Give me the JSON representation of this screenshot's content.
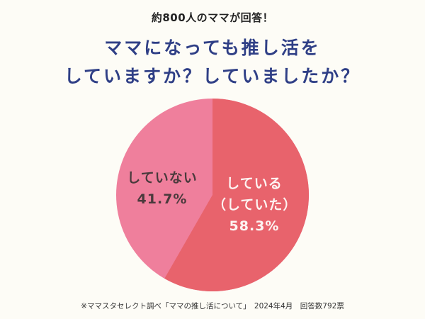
{
  "header": {
    "subtitle": "約800人のママが回答！",
    "title_line1": "ママになっても推し活を",
    "title_line2": "していますか？していましたか？"
  },
  "colors": {
    "background": "#fdfcf6",
    "title": "#2f3f86",
    "slice_yes": "#e8636c",
    "slice_no": "#ef7f9c",
    "label_yes_text": "#fdf4f2",
    "label_no_text": "#4a3a3c"
  },
  "labels": {
    "no_name": "していない",
    "no_value": "41.7%",
    "yes_name_line1": "している",
    "yes_name_line2": "（していた）",
    "yes_value": "58.3%"
  },
  "footnote": {
    "text": "※ママスタセレクト調べ「ママの推し活について」　2024年4月　回答数792票"
  },
  "chart_data": {
    "type": "pie",
    "title": "ママになっても推し活をしていますか？していましたか？",
    "subtitle": "約800人のママが回答！",
    "categories": [
      "している（していた）",
      "していない"
    ],
    "values": [
      58.3,
      41.7
    ],
    "unit": "%",
    "colors": [
      "#e8636c",
      "#ef7f9c"
    ],
    "start_angle": "12 o'clock, clockwise",
    "legend": "none (labels inside slices)",
    "source": "※ママスタセレクト調べ「ママの推し活について」 2024年4月 回答数792票"
  }
}
